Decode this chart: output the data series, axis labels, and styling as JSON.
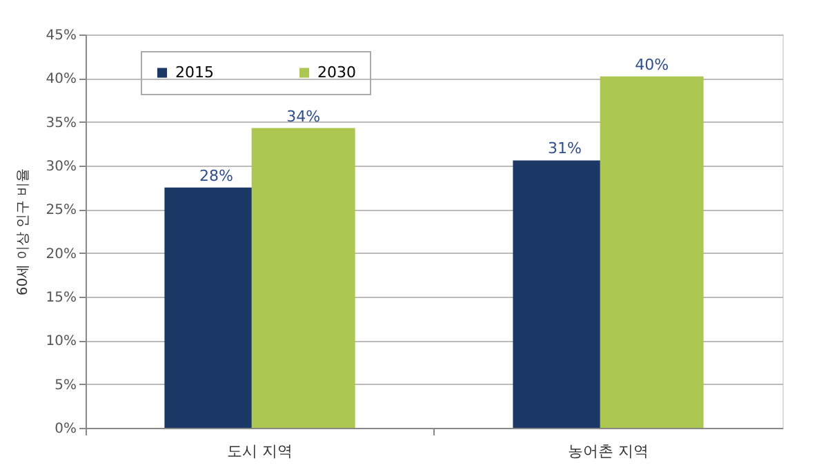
{
  "chart_data": {
    "type": "bar",
    "ylabel": "60세 이상 인구 비율",
    "categories": [
      "도시 지역",
      "농어촌 지역"
    ],
    "series": [
      {
        "name": "2015",
        "color": "#1b3866",
        "values": [
          27.5,
          30.6
        ],
        "value_labels": [
          "28%",
          "31%"
        ]
      },
      {
        "name": "2030",
        "color": "#abc752",
        "values": [
          34.3,
          40.2
        ],
        "value_labels": [
          "34%",
          "40%"
        ]
      }
    ],
    "ylim": [
      0,
      45
    ],
    "yticks": [
      {
        "value": 0,
        "label": "0%"
      },
      {
        "value": 5,
        "label": "5%"
      },
      {
        "value": 10,
        "label": "10%"
      },
      {
        "value": 15,
        "label": "15%"
      },
      {
        "value": 20,
        "label": "20%"
      },
      {
        "value": 25,
        "label": "25%"
      },
      {
        "value": 30,
        "label": "30%"
      },
      {
        "value": 35,
        "label": "35%"
      },
      {
        "value": 40,
        "label": "40%"
      },
      {
        "value": 45,
        "label": "45%"
      }
    ],
    "grid": "y",
    "legend": "top left"
  }
}
